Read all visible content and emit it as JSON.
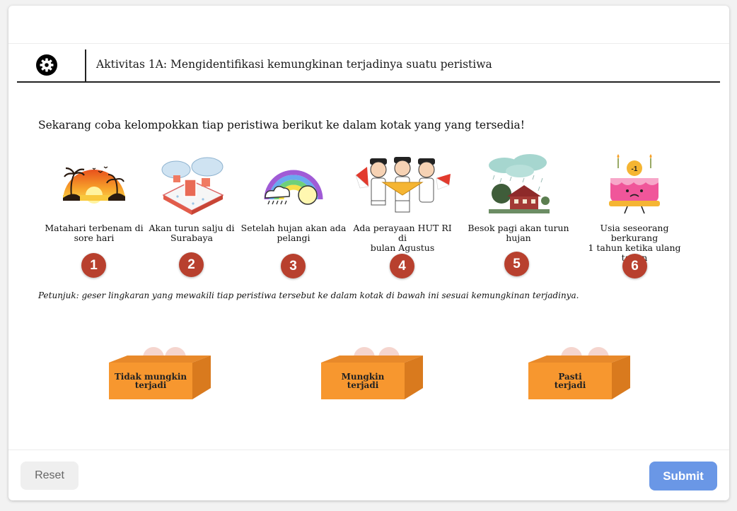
{
  "activity": {
    "title": "Aktivitas 1A: Mengidentifikasi kemungkinan terjadinya suatu peristiwa",
    "icon": "gear-icon"
  },
  "instruction": "Sekarang coba kelompokkan tiap peristiwa berikut ke dalam kotak yang yang tersedia!",
  "events": [
    {
      "number": "1",
      "label_line1": "Matahari terbenam di",
      "label_line2": "sore hari",
      "icon": "sunset-icon"
    },
    {
      "number": "2",
      "label_line1": "Akan turun salju di",
      "label_line2": "Surabaya",
      "icon": "snowy-house-icon"
    },
    {
      "number": "3",
      "label_line1": "Setelah hujan akan ada",
      "label_line2": "pelangi",
      "icon": "rainbow-icon"
    },
    {
      "number": "4",
      "label_line1": "Ada perayaan HUT RI di",
      "label_line2": "bulan Agustus",
      "icon": "flag-ceremony-icon"
    },
    {
      "number": "5",
      "label_line1": "Besok pagi akan turun",
      "label_line2": "hujan",
      "icon": "rain-house-icon"
    },
    {
      "number": "6",
      "label_line1": "Usia seseorang berkurang",
      "label_line2": "1 tahun ketika ulang tahun",
      "icon": "birthday-cake-icon",
      "cake_badge": "-1"
    }
  ],
  "hint": "Petunjuk: geser lingkaran yang mewakili tiap peristiwa tersebut ke dalam kotak di bawah ini sesuai kemungkinan terjadinya.",
  "boxes": [
    {
      "line1": "Tidak mungkin",
      "line2": "terjadi"
    },
    {
      "line1": "Mungkin",
      "line2": "terjadi"
    },
    {
      "line1": "Pasti",
      "line2": "terjadi"
    }
  ],
  "footer": {
    "reset_label": "Reset",
    "submit_label": "Submit"
  },
  "colors": {
    "number_badge": "#b8402e",
    "box_orange": "#f7972f",
    "submit_blue": "#6a97e6",
    "reset_gray": "#efefef"
  }
}
